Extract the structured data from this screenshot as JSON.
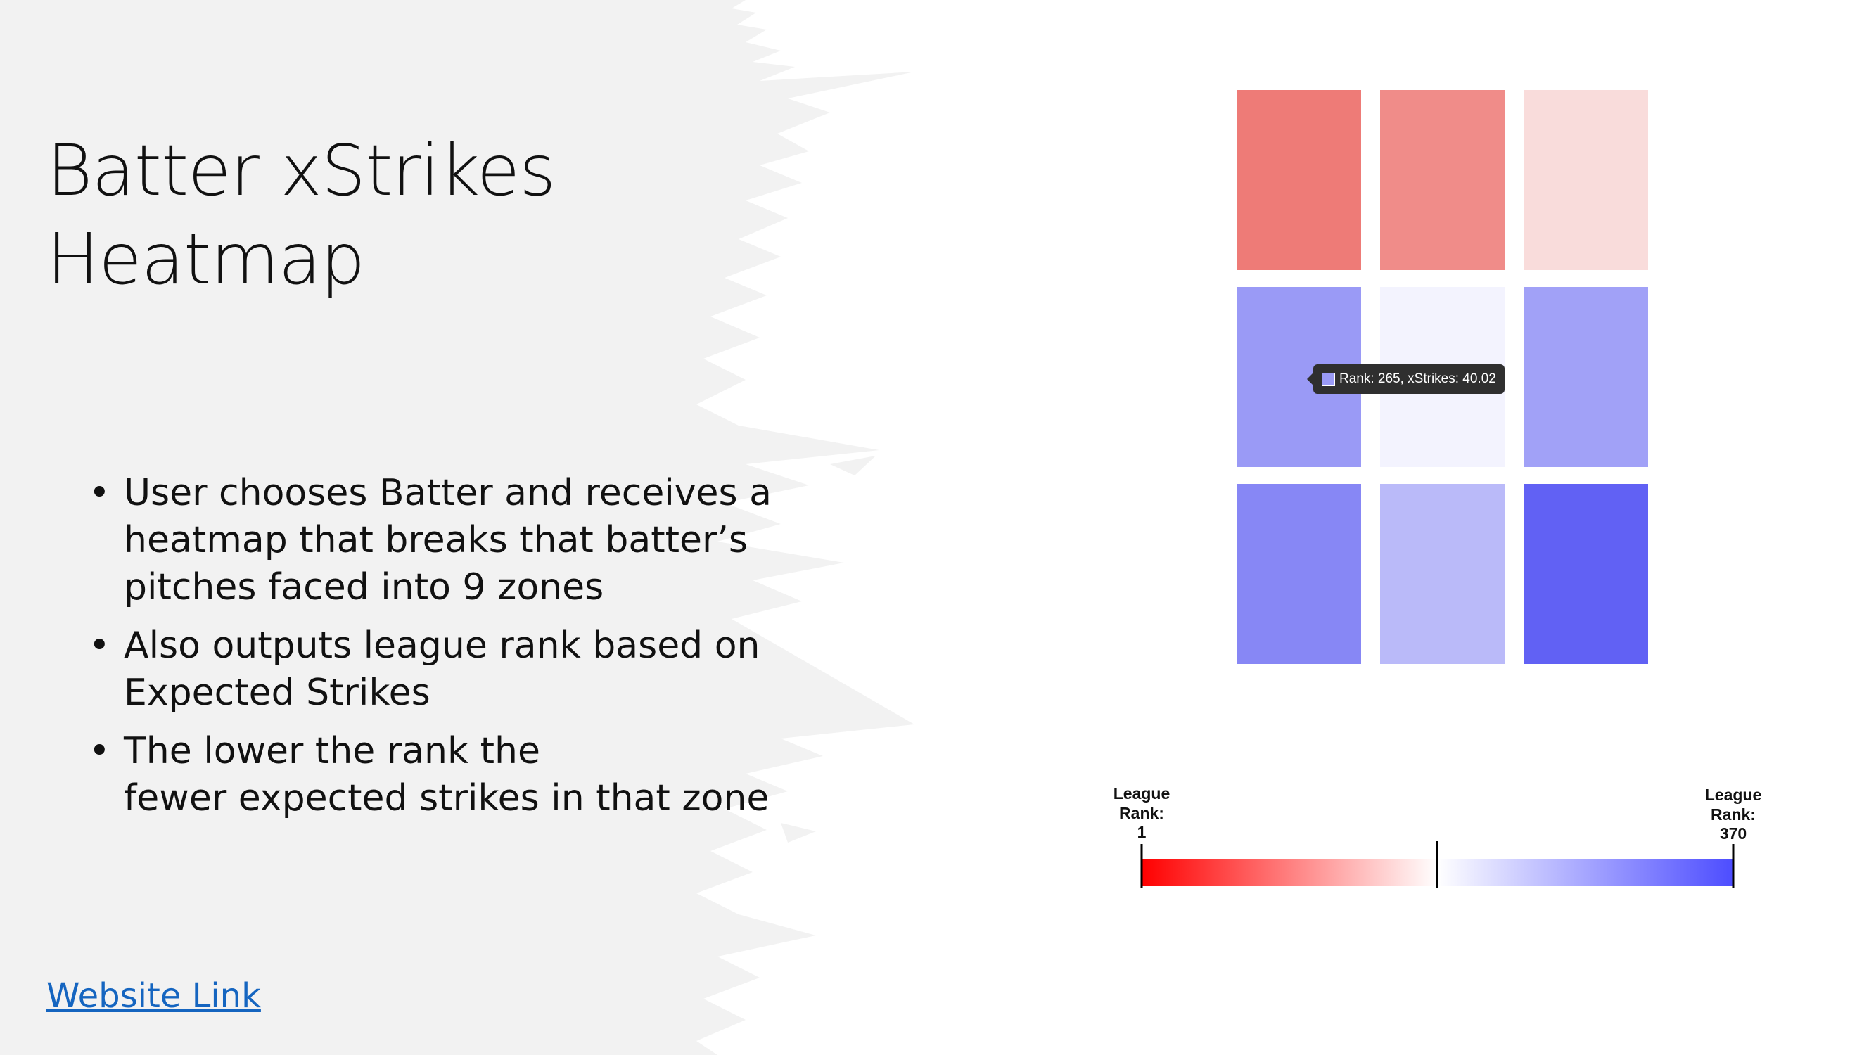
{
  "slide": {
    "title_lines": [
      "Batter xStrikes",
      "Heatmap"
    ],
    "bullets": [
      {
        "lines": [
          "User chooses Batter and receives a",
          "heatmap that breaks that batter’s",
          "pitches faced into 9 zones"
        ]
      },
      {
        "lines": [
          "Also outputs league rank based on",
          "Expected Strikes"
        ]
      },
      {
        "lines": [
          "The lower the rank the",
          "fewer expected strikes in that zone"
        ]
      }
    ],
    "bullet_symbol": "•",
    "link_text": "Website Link",
    "background_splash_color": "#f2f2f2"
  },
  "chart_data": {
    "type": "heatmap",
    "rows": 3,
    "cols": 3,
    "cells": [
      {
        "row": 0,
        "col": 0,
        "color": "#ee7b77"
      },
      {
        "row": 0,
        "col": 1,
        "color": "#f08c89"
      },
      {
        "row": 0,
        "col": 2,
        "color": "#f9dcdb"
      },
      {
        "row": 1,
        "col": 0,
        "color": "#9a9af6"
      },
      {
        "row": 1,
        "col": 1,
        "color": "#f3f3fe"
      },
      {
        "row": 1,
        "col": 2,
        "color": "#a1a1f7"
      },
      {
        "row": 2,
        "col": 0,
        "color": "#8787f5"
      },
      {
        "row": 2,
        "col": 1,
        "color": "#babaf9"
      },
      {
        "row": 2,
        "col": 2,
        "color": "#6161f4"
      }
    ],
    "tooltip": {
      "row": 1,
      "col": 0,
      "text": "Rank: 265, xStrikes: 40.02"
    },
    "color_scale": {
      "low_color": "#ff0000",
      "mid_color": "#ffffff",
      "high_color": "#4d4dff",
      "min_label": [
        "League",
        "Rank:",
        "1"
      ],
      "max_label": [
        "League",
        "Rank:",
        "370"
      ],
      "min_rank": 1,
      "max_rank": 370
    }
  }
}
